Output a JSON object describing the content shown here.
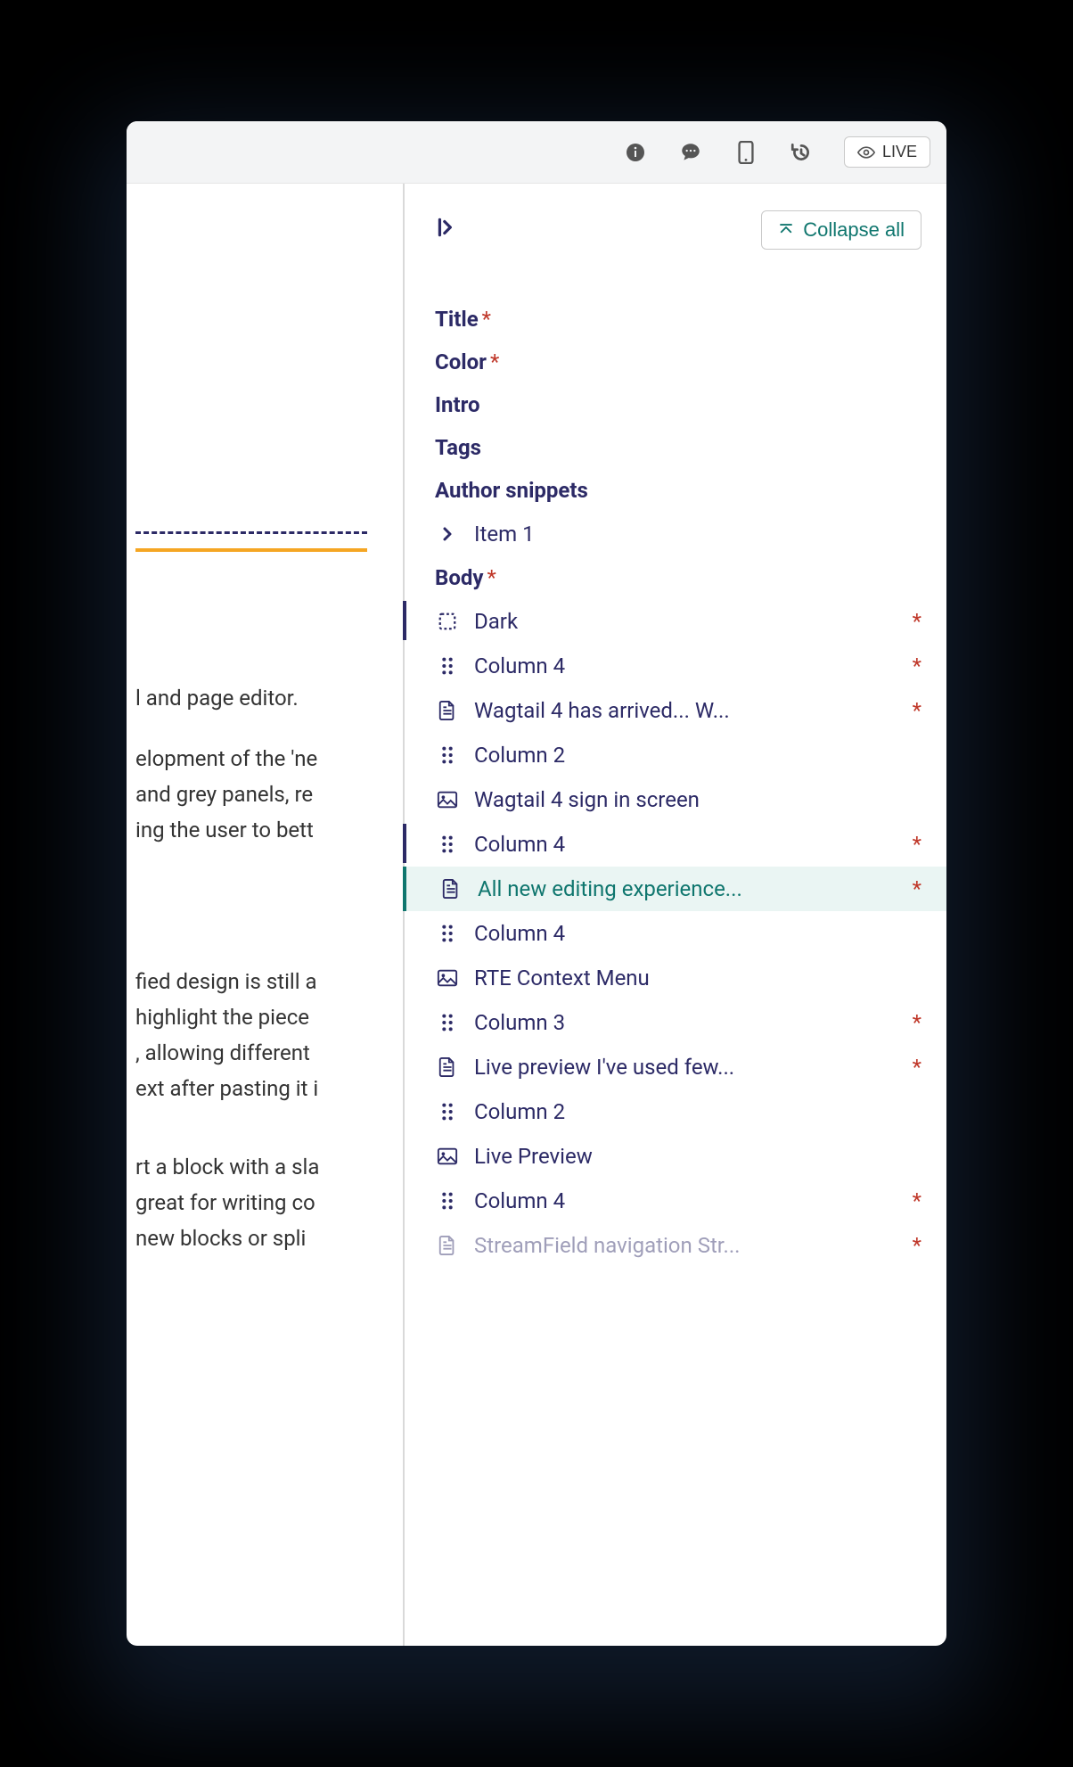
{
  "topbar": {
    "live_label": "LIVE"
  },
  "left": {
    "lines_top": [
      "l and page editor.",
      "",
      "elopment of the 'ne",
      "and grey panels, re",
      "ing the user to bett"
    ],
    "lines_mid": [
      "fied design is still a",
      "highlight the piece",
      ", allowing different",
      "ext after pasting it i"
    ],
    "lines_bot": [
      "rt a block with a sla",
      "great for writing co",
      "new blocks or spli"
    ]
  },
  "panel": {
    "collapse_label": "Collapse all",
    "fields": {
      "title": "Title",
      "color": "Color",
      "intro": "Intro",
      "tags": "Tags",
      "author_snippets": "Author snippets",
      "item1": "Item 1",
      "body": "Body"
    },
    "body_items": [
      {
        "icon": "dashed",
        "label": "Dark",
        "req": true,
        "marker": true
      },
      {
        "icon": "grip",
        "label": "Column 4",
        "req": true
      },
      {
        "icon": "doc",
        "label": "Wagtail 4 has arrived... W...",
        "req": true
      },
      {
        "icon": "grip",
        "label": "Column 2",
        "req": false
      },
      {
        "icon": "image",
        "label": "Wagtail 4 sign in screen",
        "req": false
      },
      {
        "icon": "grip",
        "label": "Column 4",
        "req": true,
        "marker": true
      },
      {
        "icon": "doc",
        "label": "All new editing experience...",
        "req": true,
        "selected": true
      },
      {
        "icon": "grip",
        "label": "Column 4",
        "req": false
      },
      {
        "icon": "image",
        "label": "RTE Context Menu",
        "req": false
      },
      {
        "icon": "grip",
        "label": "Column 3",
        "req": true
      },
      {
        "icon": "doc",
        "label": "Live preview I've used few...",
        "req": true
      },
      {
        "icon": "grip",
        "label": "Column 2",
        "req": false
      },
      {
        "icon": "image",
        "label": "Live Preview",
        "req": false
      },
      {
        "icon": "grip",
        "label": "Column 4",
        "req": true
      },
      {
        "icon": "doc",
        "label": "StreamField navigation Str...",
        "req": true,
        "faded": true
      }
    ]
  }
}
